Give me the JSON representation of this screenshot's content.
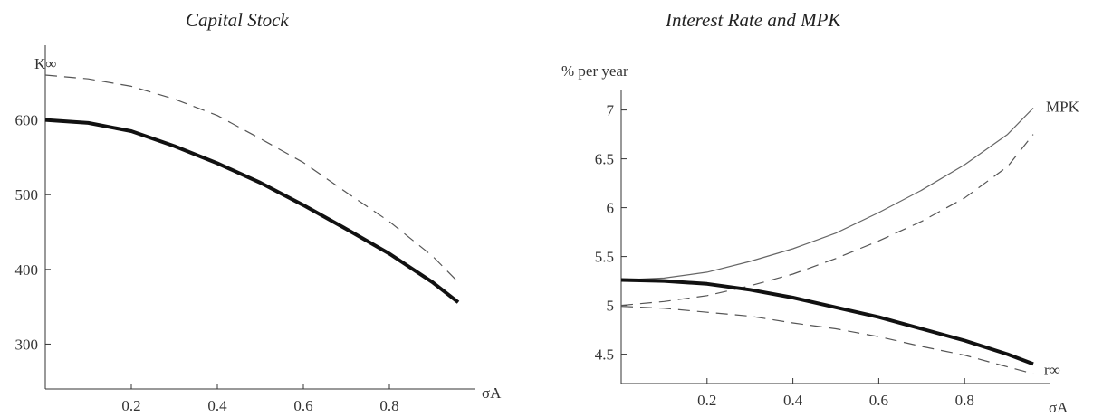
{
  "chart_data": [
    {
      "type": "line",
      "title": "Capital Stock",
      "ylabel": "K∞",
      "xlabel": "σA",
      "xlim": [
        0,
        1
      ],
      "ylim": [
        240,
        700
      ],
      "xticks": [
        0.2,
        0.4,
        0.6,
        0.8
      ],
      "xtick_labels": [
        "0.2",
        "0.4",
        "0.6",
        "0.8"
      ],
      "yticks": [
        300,
        400,
        500,
        600
      ],
      "ytick_labels": [
        "300",
        "400",
        "500",
        "600"
      ],
      "grid": false,
      "series": [
        {
          "style": "solid-thick",
          "x": [
            0.0,
            0.1,
            0.2,
            0.3,
            0.4,
            0.5,
            0.6,
            0.7,
            0.8,
            0.9,
            0.96
          ],
          "y": [
            600,
            596,
            585,
            565,
            542,
            516,
            486,
            454,
            421,
            383,
            356
          ]
        },
        {
          "style": "dashed",
          "x": [
            0.0,
            0.1,
            0.2,
            0.3,
            0.4,
            0.5,
            0.6,
            0.7,
            0.8,
            0.9,
            0.96
          ],
          "y": [
            660,
            655,
            645,
            628,
            606,
            575,
            543,
            503,
            464,
            418,
            383
          ]
        }
      ],
      "annotations": []
    },
    {
      "type": "line",
      "title": "Interest Rate and MPK",
      "ylabel": "% per year",
      "xlabel": "σA",
      "xlim": [
        0,
        1
      ],
      "ylim": [
        4.2,
        7.2
      ],
      "xticks": [
        0.2,
        0.4,
        0.6,
        0.8
      ],
      "xtick_labels": [
        "0.2",
        "0.4",
        "0.6",
        "0.8"
      ],
      "yticks": [
        4.5,
        5,
        5.5,
        6,
        6.5,
        7
      ],
      "ytick_labels": [
        "4.5",
        "5",
        "5.5",
        "6",
        "6.5",
        "7"
      ],
      "grid": false,
      "series": [
        {
          "name": "MPK",
          "style": "solid-thin",
          "x": [
            0.0,
            0.1,
            0.2,
            0.3,
            0.4,
            0.5,
            0.6,
            0.7,
            0.8,
            0.9,
            0.96
          ],
          "y": [
            5.26,
            5.28,
            5.34,
            5.45,
            5.58,
            5.74,
            5.95,
            6.18,
            6.44,
            6.75,
            7.02
          ]
        },
        {
          "style": "dashed",
          "x": [
            0.0,
            0.1,
            0.2,
            0.3,
            0.4,
            0.5,
            0.6,
            0.7,
            0.8,
            0.9,
            0.96
          ],
          "y": [
            5.0,
            5.04,
            5.1,
            5.2,
            5.32,
            5.48,
            5.66,
            5.86,
            6.1,
            6.42,
            6.75
          ]
        },
        {
          "name": "r∞",
          "style": "solid-thick",
          "x": [
            0.0,
            0.1,
            0.2,
            0.3,
            0.4,
            0.5,
            0.6,
            0.7,
            0.8,
            0.9,
            0.96
          ],
          "y": [
            5.26,
            5.25,
            5.22,
            5.16,
            5.08,
            4.98,
            4.88,
            4.76,
            4.64,
            4.5,
            4.4
          ]
        },
        {
          "style": "dashed",
          "x": [
            0.0,
            0.1,
            0.2,
            0.3,
            0.4,
            0.5,
            0.6,
            0.7,
            0.8,
            0.9,
            0.96
          ],
          "y": [
            4.99,
            4.97,
            4.93,
            4.89,
            4.82,
            4.76,
            4.68,
            4.58,
            4.49,
            4.37,
            4.3
          ]
        }
      ],
      "annotations": []
    }
  ],
  "colors": {
    "axis": "#333333",
    "thick_line": "#111111",
    "thin_line": "#666666",
    "dashed_line": "#555555"
  }
}
